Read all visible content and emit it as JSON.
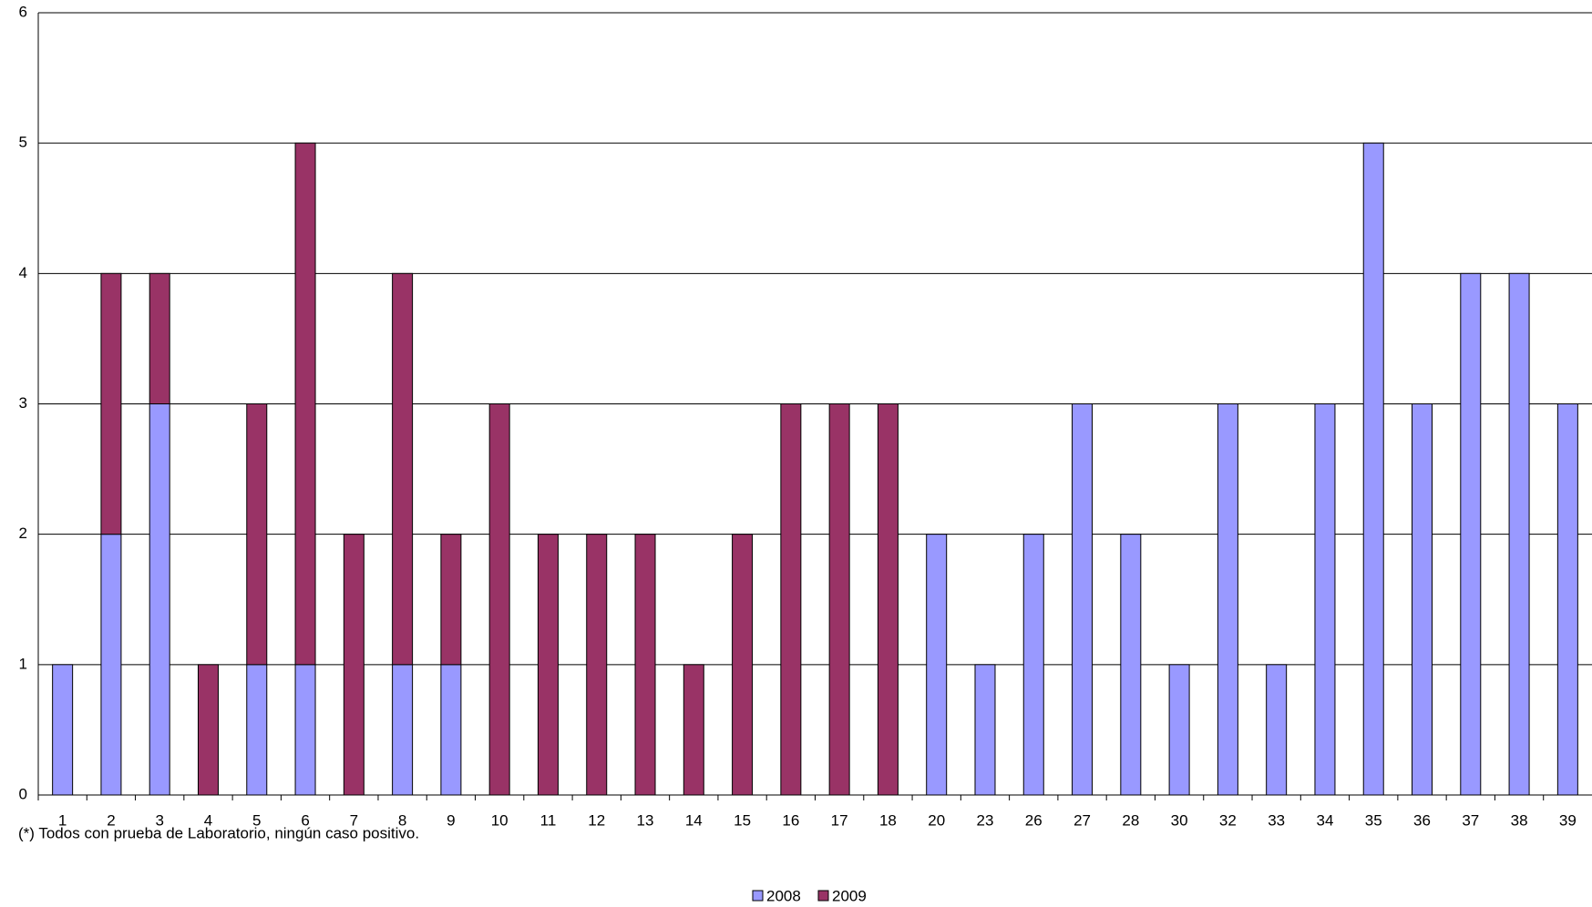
{
  "chart_data": {
    "type": "stacked-bar",
    "categories": [
      "1",
      "2",
      "3",
      "4",
      "5",
      "6",
      "7",
      "8",
      "9",
      "10",
      "11",
      "12",
      "13",
      "14",
      "15",
      "16",
      "17",
      "18",
      "20",
      "23",
      "26",
      "27",
      "28",
      "30",
      "32",
      "33",
      "34",
      "35",
      "36",
      "37",
      "38",
      "39"
    ],
    "series": [
      {
        "name": "2008",
        "color": "#9999ff",
        "values": [
          1,
          2,
          3,
          0,
          1,
          1,
          0,
          1,
          1,
          0,
          0,
          0,
          0,
          0,
          0,
          0,
          0,
          0,
          2,
          1,
          2,
          3,
          2,
          1,
          3,
          1,
          3,
          5,
          3,
          4,
          4,
          3
        ]
      },
      {
        "name": "2009",
        "color": "#993366",
        "values": [
          0,
          2,
          1,
          1,
          2,
          4,
          2,
          3,
          1,
          3,
          2,
          2,
          2,
          1,
          2,
          3,
          3,
          3,
          0,
          0,
          0,
          0,
          0,
          0,
          0,
          0,
          0,
          0,
          0,
          0,
          0,
          0
        ]
      }
    ],
    "ylim": [
      0,
      6
    ],
    "yticks": [
      0,
      1,
      2,
      3,
      4,
      5,
      6
    ],
    "grid": true,
    "legend": "bottom",
    "note": "(*) Todos con prueba de Laboratorio, ningún caso positivo."
  }
}
